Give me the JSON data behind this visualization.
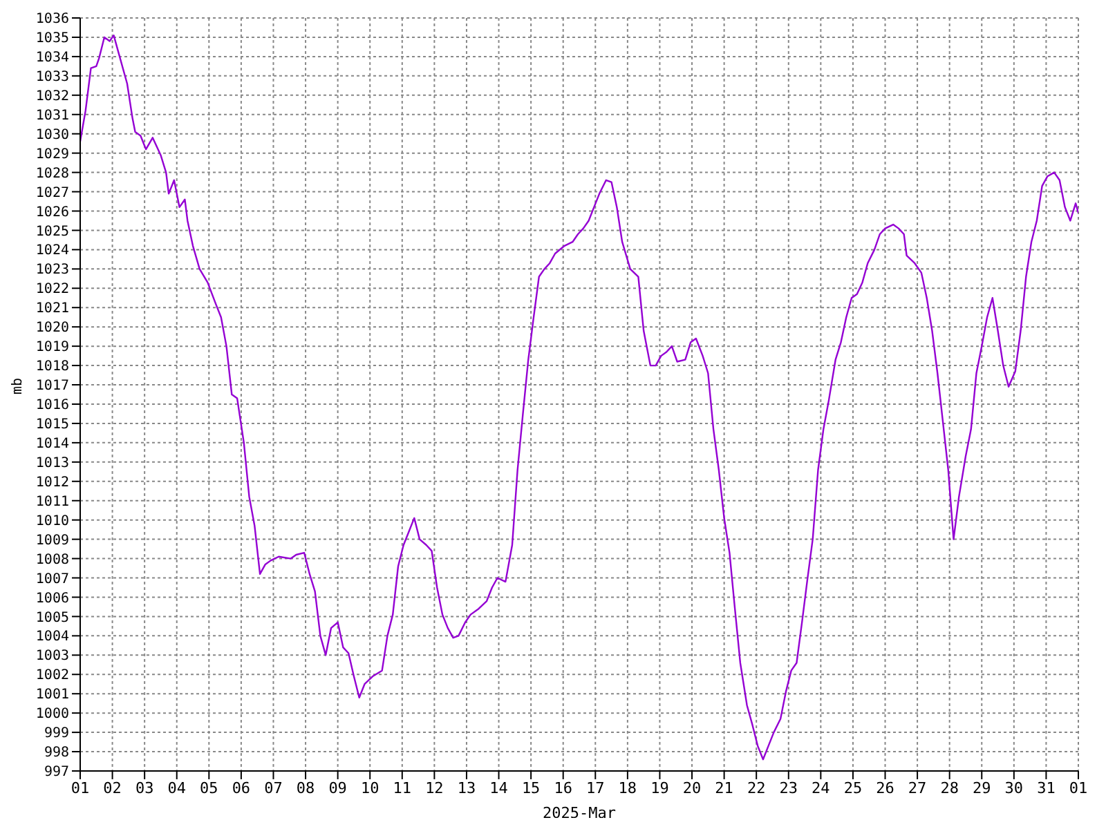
{
  "chart_data": {
    "type": "line",
    "xlabel": "2025-Mar",
    "ylabel": "mb",
    "x": [
      "2025-03-01T00:00",
      "2025-03-01T04:00",
      "2025-03-01T08:00",
      "2025-03-01T12:00",
      "2025-03-01T14:00",
      "2025-03-01T18:00",
      "2025-03-01T22:00",
      "2025-03-02T01:00",
      "2025-03-02T05:00",
      "2025-03-02T11:00",
      "2025-03-02T15:00",
      "2025-03-02T17:00",
      "2025-03-02T21:00",
      "2025-03-03T01:00",
      "2025-03-03T06:00",
      "2025-03-03T12:00",
      "2025-03-03T16:00",
      "2025-03-03T18:00",
      "2025-03-03T22:00",
      "2025-03-04T02:00",
      "2025-03-04T06:00",
      "2025-03-04T08:00",
      "2025-03-04T12:00",
      "2025-03-04T17:00",
      "2025-03-04T23:00",
      "2025-03-05T05:00",
      "2025-03-05T09:00",
      "2025-03-05T13:00",
      "2025-03-05T17:00",
      "2025-03-05T21:00",
      "2025-03-06T02:00",
      "2025-03-06T06:00",
      "2025-03-06T10:00",
      "2025-03-06T14:00",
      "2025-03-06T18:00",
      "2025-03-06T22:00",
      "2025-03-07T04:00",
      "2025-03-07T13:00",
      "2025-03-07T17:00",
      "2025-03-07T23:00",
      "2025-03-08T03:00",
      "2025-03-08T07:00",
      "2025-03-08T11:00",
      "2025-03-08T15:00",
      "2025-03-08T19:00",
      "2025-03-09T00:00",
      "2025-03-09T04:00",
      "2025-03-09T08:00",
      "2025-03-09T12:00",
      "2025-03-09T16:00",
      "2025-03-09T20:00",
      "2025-03-10T02:00",
      "2025-03-10T09:00",
      "2025-03-10T13:00",
      "2025-03-10T17:00",
      "2025-03-10T21:00",
      "2025-03-11T01:00",
      "2025-03-11T05:00",
      "2025-03-11T09:00",
      "2025-03-11T13:00",
      "2025-03-11T18:00",
      "2025-03-11T22:00",
      "2025-03-12T02:00",
      "2025-03-12T06:00",
      "2025-03-12T10:00",
      "2025-03-12T14:00",
      "2025-03-12T18:00",
      "2025-03-12T23:00",
      "2025-03-13T03:00",
      "2025-03-13T09:00",
      "2025-03-13T15:00",
      "2025-03-13T19:00",
      "2025-03-13T23:00",
      "2025-03-14T05:00",
      "2025-03-14T10:00",
      "2025-03-14T14:00",
      "2025-03-14T18:00",
      "2025-03-14T22:00",
      "2025-03-15T02:00",
      "2025-03-15T06:00",
      "2025-03-15T10:00",
      "2025-03-15T14:00",
      "2025-03-15T18:00",
      "2025-03-16T01:00",
      "2025-03-16T07:00",
      "2025-03-16T11:00",
      "2025-03-16T15:00",
      "2025-03-16T19:00",
      "2025-03-16T23:00",
      "2025-03-17T03:00",
      "2025-03-17T08:00",
      "2025-03-17T12:00",
      "2025-03-17T16:00",
      "2025-03-17T20:00",
      "2025-03-18T02:00",
      "2025-03-18T08:00",
      "2025-03-18T12:00",
      "2025-03-18T17:00",
      "2025-03-18T21:00",
      "2025-03-19T01:00",
      "2025-03-19T05:00",
      "2025-03-19T09:00",
      "2025-03-19T13:00",
      "2025-03-19T19:00",
      "2025-03-19T23:00",
      "2025-03-20T03:00",
      "2025-03-20T08:00",
      "2025-03-20T12:00",
      "2025-03-20T16:00",
      "2025-03-20T20:00",
      "2025-03-21T00:00",
      "2025-03-21T04:00",
      "2025-03-21T08:00",
      "2025-03-21T12:00",
      "2025-03-21T17:00",
      "2025-03-21T21:00",
      "2025-03-22T01:00",
      "2025-03-22T05:00",
      "2025-03-22T09:00",
      "2025-03-22T13:00",
      "2025-03-22T18:00",
      "2025-03-22T22:00",
      "2025-03-23T02:00",
      "2025-03-23T06:00",
      "2025-03-23T10:00",
      "2025-03-23T14:00",
      "2025-03-23T18:00",
      "2025-03-23T22:00",
      "2025-03-24T02:00",
      "2025-03-24T06:00",
      "2025-03-24T11:00",
      "2025-03-24T15:00",
      "2025-03-24T19:00",
      "2025-03-24T23:00",
      "2025-03-25T03:00",
      "2025-03-25T07:00",
      "2025-03-25T11:00",
      "2025-03-25T16:00",
      "2025-03-25T20:00",
      "2025-03-26T00:00",
      "2025-03-26T06:00",
      "2025-03-26T10:00",
      "2025-03-26T14:00",
      "2025-03-26T16:00",
      "2025-03-26T22:00",
      "2025-03-27T03:00",
      "2025-03-27T07:00",
      "2025-03-27T11:00",
      "2025-03-27T15:00",
      "2025-03-27T19:00",
      "2025-03-27T23:00",
      "2025-03-28T03:00",
      "2025-03-28T07:00",
      "2025-03-28T12:00",
      "2025-03-28T16:00",
      "2025-03-28T20:00",
      "2025-03-29T00:00",
      "2025-03-29T04:00",
      "2025-03-29T08:00",
      "2025-03-29T12:00",
      "2025-03-29T16:00",
      "2025-03-29T20:00",
      "2025-03-30T01:00",
      "2025-03-30T05:00",
      "2025-03-30T09:00",
      "2025-03-30T13:00",
      "2025-03-30T17:00",
      "2025-03-30T21:00",
      "2025-03-31T01:00",
      "2025-03-31T06:00",
      "2025-03-31T10:00",
      "2025-03-31T14:00",
      "2025-03-31T18:00",
      "2025-03-31T22:00",
      "2025-04-01T00:00"
    ],
    "series": [
      {
        "color": "#9400d3",
        "values": [
          1029.6,
          1031.2,
          1033.4,
          1033.5,
          1033.9,
          1035.0,
          1034.8,
          1035.1,
          1034.1,
          1032.6,
          1030.8,
          1030.1,
          1029.9,
          1029.2,
          1029.8,
          1028.9,
          1028.0,
          1026.9,
          1027.6,
          1026.2,
          1026.6,
          1025.5,
          1024.2,
          1023.0,
          1022.3,
          1021.2,
          1020.5,
          1019.0,
          1016.5,
          1016.3,
          1014.0,
          1011.2,
          1009.7,
          1007.2,
          1007.7,
          1007.9,
          1008.1,
          1008.0,
          1008.2,
          1008.3,
          1007.2,
          1006.3,
          1004.0,
          1003.0,
          1004.4,
          1004.7,
          1003.4,
          1003.1,
          1001.9,
          1000.8,
          1001.5,
          1001.9,
          1002.2,
          1004.0,
          1005.1,
          1007.6,
          1008.7,
          1009.4,
          1010.1,
          1009.0,
          1008.7,
          1008.4,
          1006.5,
          1005.1,
          1004.4,
          1003.9,
          1004.0,
          1004.7,
          1005.1,
          1005.4,
          1005.8,
          1006.5,
          1007.0,
          1006.8,
          1008.7,
          1012.6,
          1015.5,
          1018.3,
          1020.5,
          1022.6,
          1023.0,
          1023.3,
          1023.8,
          1024.2,
          1024.4,
          1024.8,
          1025.1,
          1025.5,
          1026.2,
          1026.9,
          1027.6,
          1027.5,
          1026.2,
          1024.4,
          1023.0,
          1022.6,
          1019.8,
          1018.0,
          1018.0,
          1018.5,
          1018.7,
          1019.0,
          1018.2,
          1018.3,
          1019.2,
          1019.4,
          1018.5,
          1017.6,
          1014.7,
          1012.6,
          1010.1,
          1008.3,
          1005.4,
          1002.6,
          1000.4,
          999.4,
          998.3,
          997.6,
          998.3,
          999.0,
          999.7,
          1001.1,
          1002.2,
          1002.6,
          1004.7,
          1006.9,
          1009.0,
          1012.6,
          1014.7,
          1016.2,
          1018.3,
          1019.2,
          1020.5,
          1021.5,
          1021.7,
          1022.3,
          1023.3,
          1024.0,
          1024.8,
          1025.1,
          1025.3,
          1025.1,
          1024.8,
          1023.7,
          1023.3,
          1022.8,
          1021.5,
          1019.8,
          1017.6,
          1015.1,
          1012.6,
          1009.0,
          1011.2,
          1013.3,
          1014.7,
          1017.6,
          1019.0,
          1020.5,
          1021.5,
          1019.8,
          1018.0,
          1016.9,
          1017.7,
          1019.8,
          1022.6,
          1024.4,
          1025.5,
          1027.3,
          1027.8,
          1028.0,
          1027.6,
          1026.2,
          1025.5,
          1026.4,
          1025.9
        ]
      }
    ],
    "xlim": [
      "2025-03-01",
      "2025-04-01"
    ],
    "xticks": [
      {
        "value": "2025-03-01",
        "label": "01"
      },
      {
        "value": "2025-03-02",
        "label": "02"
      },
      {
        "value": "2025-03-03",
        "label": "03"
      },
      {
        "value": "2025-03-04",
        "label": "04"
      },
      {
        "value": "2025-03-05",
        "label": "05"
      },
      {
        "value": "2025-03-06",
        "label": "06"
      },
      {
        "value": "2025-03-07",
        "label": "07"
      },
      {
        "value": "2025-03-08",
        "label": "08"
      },
      {
        "value": "2025-03-09",
        "label": "09"
      },
      {
        "value": "2025-03-10",
        "label": "10"
      },
      {
        "value": "2025-03-11",
        "label": "11"
      },
      {
        "value": "2025-03-12",
        "label": "12"
      },
      {
        "value": "2025-03-13",
        "label": "13"
      },
      {
        "value": "2025-03-14",
        "label": "14"
      },
      {
        "value": "2025-03-15",
        "label": "15"
      },
      {
        "value": "2025-03-16",
        "label": "16"
      },
      {
        "value": "2025-03-17",
        "label": "17"
      },
      {
        "value": "2025-03-18",
        "label": "18"
      },
      {
        "value": "2025-03-19",
        "label": "19"
      },
      {
        "value": "2025-03-20",
        "label": "20"
      },
      {
        "value": "2025-03-21",
        "label": "21"
      },
      {
        "value": "2025-03-22",
        "label": "22"
      },
      {
        "value": "2025-03-23",
        "label": "23"
      },
      {
        "value": "2025-03-24",
        "label": "24"
      },
      {
        "value": "2025-03-25",
        "label": "25"
      },
      {
        "value": "2025-03-26",
        "label": "26"
      },
      {
        "value": "2025-03-27",
        "label": "27"
      },
      {
        "value": "2025-03-28",
        "label": "28"
      },
      {
        "value": "2025-03-29",
        "label": "29"
      },
      {
        "value": "2025-03-30",
        "label": "30"
      },
      {
        "value": "2025-03-31",
        "label": "31"
      },
      {
        "value": "2025-04-01",
        "label": "01"
      }
    ],
    "ylim": [
      997,
      1036
    ],
    "yticks": [
      997,
      998,
      999,
      1000,
      1001,
      1002,
      1003,
      1004,
      1005,
      1006,
      1007,
      1008,
      1009,
      1010,
      1011,
      1012,
      1013,
      1014,
      1015,
      1016,
      1017,
      1018,
      1019,
      1020,
      1021,
      1022,
      1023,
      1024,
      1025,
      1026,
      1027,
      1028,
      1029,
      1030,
      1031,
      1032,
      1033,
      1034,
      1035,
      1036
    ],
    "grid": true,
    "legend": false,
    "marker": "none",
    "line_style": "solid"
  }
}
